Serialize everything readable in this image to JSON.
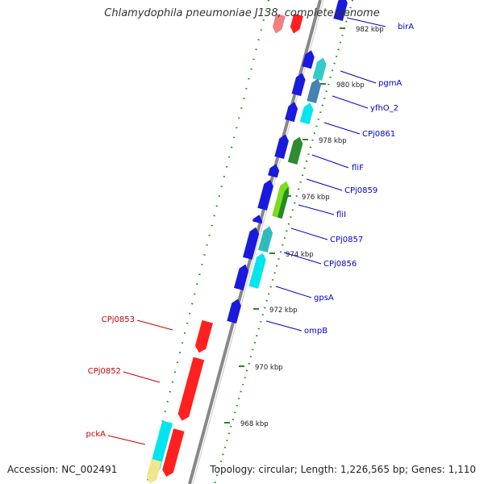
{
  "title": "Chlamydophila pneumoniae J138, complete genome",
  "footer": {
    "accession": "Accession: NC_002491",
    "topology": "Topology: circular; Length: 1,226,565 bp; Genes: 1,110"
  },
  "colors": {
    "forward_label": "#0000cc",
    "reverse_label": "#cc0000",
    "backbone": "#888888",
    "tick": "#228b22"
  },
  "ruler_labels": [
    "982 kbp",
    "980 kbp",
    "978 kbp",
    "976 kbp",
    "974 kbp",
    "972 kbp",
    "970 kbp",
    "968 kbp"
  ],
  "forward_genes": [
    "birA",
    "pgmA",
    "yfhO_2",
    "CPj0861",
    "fliF",
    "CPj0859",
    "fliI",
    "CPj0857",
    "CPj0856",
    "gpsA",
    "ompB"
  ],
  "reverse_genes": [
    "CPj0853",
    "CPj0852",
    "pckA"
  ]
}
